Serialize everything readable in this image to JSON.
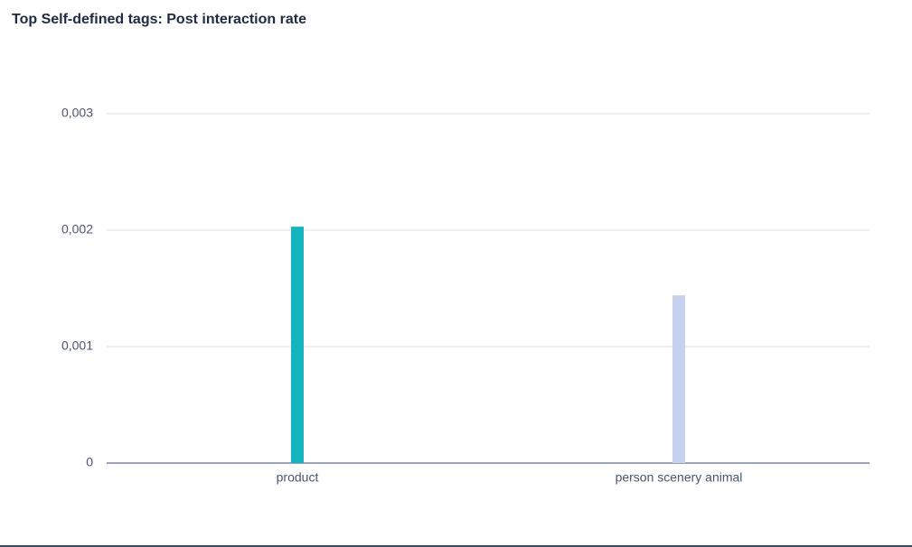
{
  "chart_data": {
    "type": "bar",
    "title": "Top Self-defined tags: Post interaction rate",
    "categories": [
      "product",
      "person scenery animal"
    ],
    "values": [
      0.00203,
      0.00144
    ],
    "colors": [
      "#14b3be",
      "#c8d0f0"
    ],
    "ylim": [
      0,
      0.003
    ],
    "yticks": [
      0,
      {
        "value": 0.001,
        "label": "0,001"
      },
      {
        "value": 0.002,
        "label": "0,002"
      },
      {
        "value": 0.003,
        "label": "0,003"
      }
    ],
    "grid": true
  }
}
